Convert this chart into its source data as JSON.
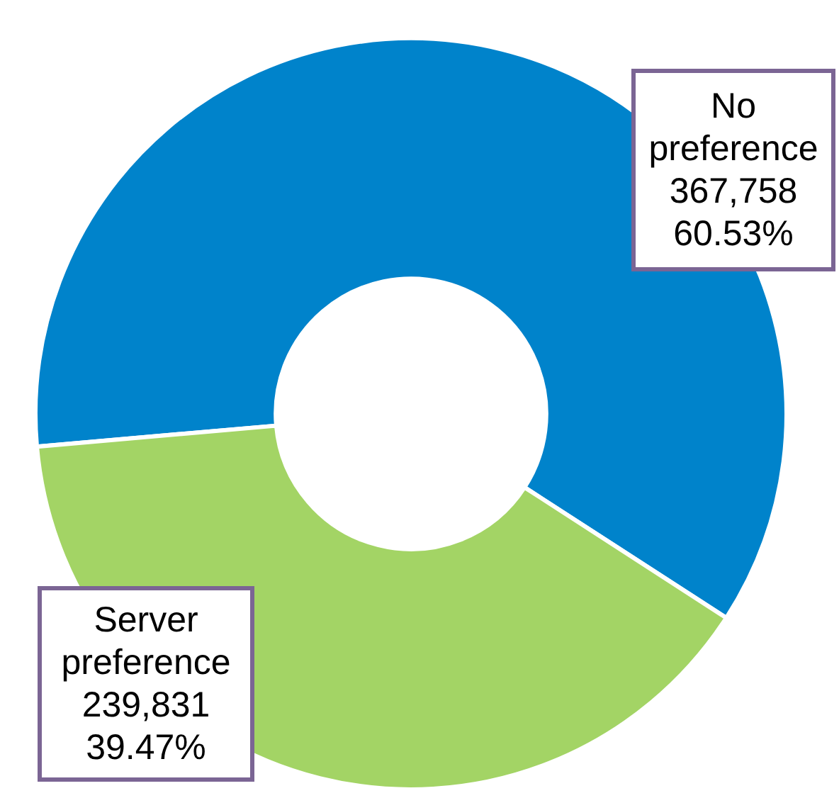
{
  "chart_data": {
    "type": "donut",
    "categories": [
      "No preference",
      "Server preference"
    ],
    "values": [
      367758,
      239831
    ],
    "colors": [
      "#0083cb",
      "#a3d465"
    ],
    "value_labels": [
      "367,758\n60.53%",
      "239,831\n39.47%"
    ]
  }
}
